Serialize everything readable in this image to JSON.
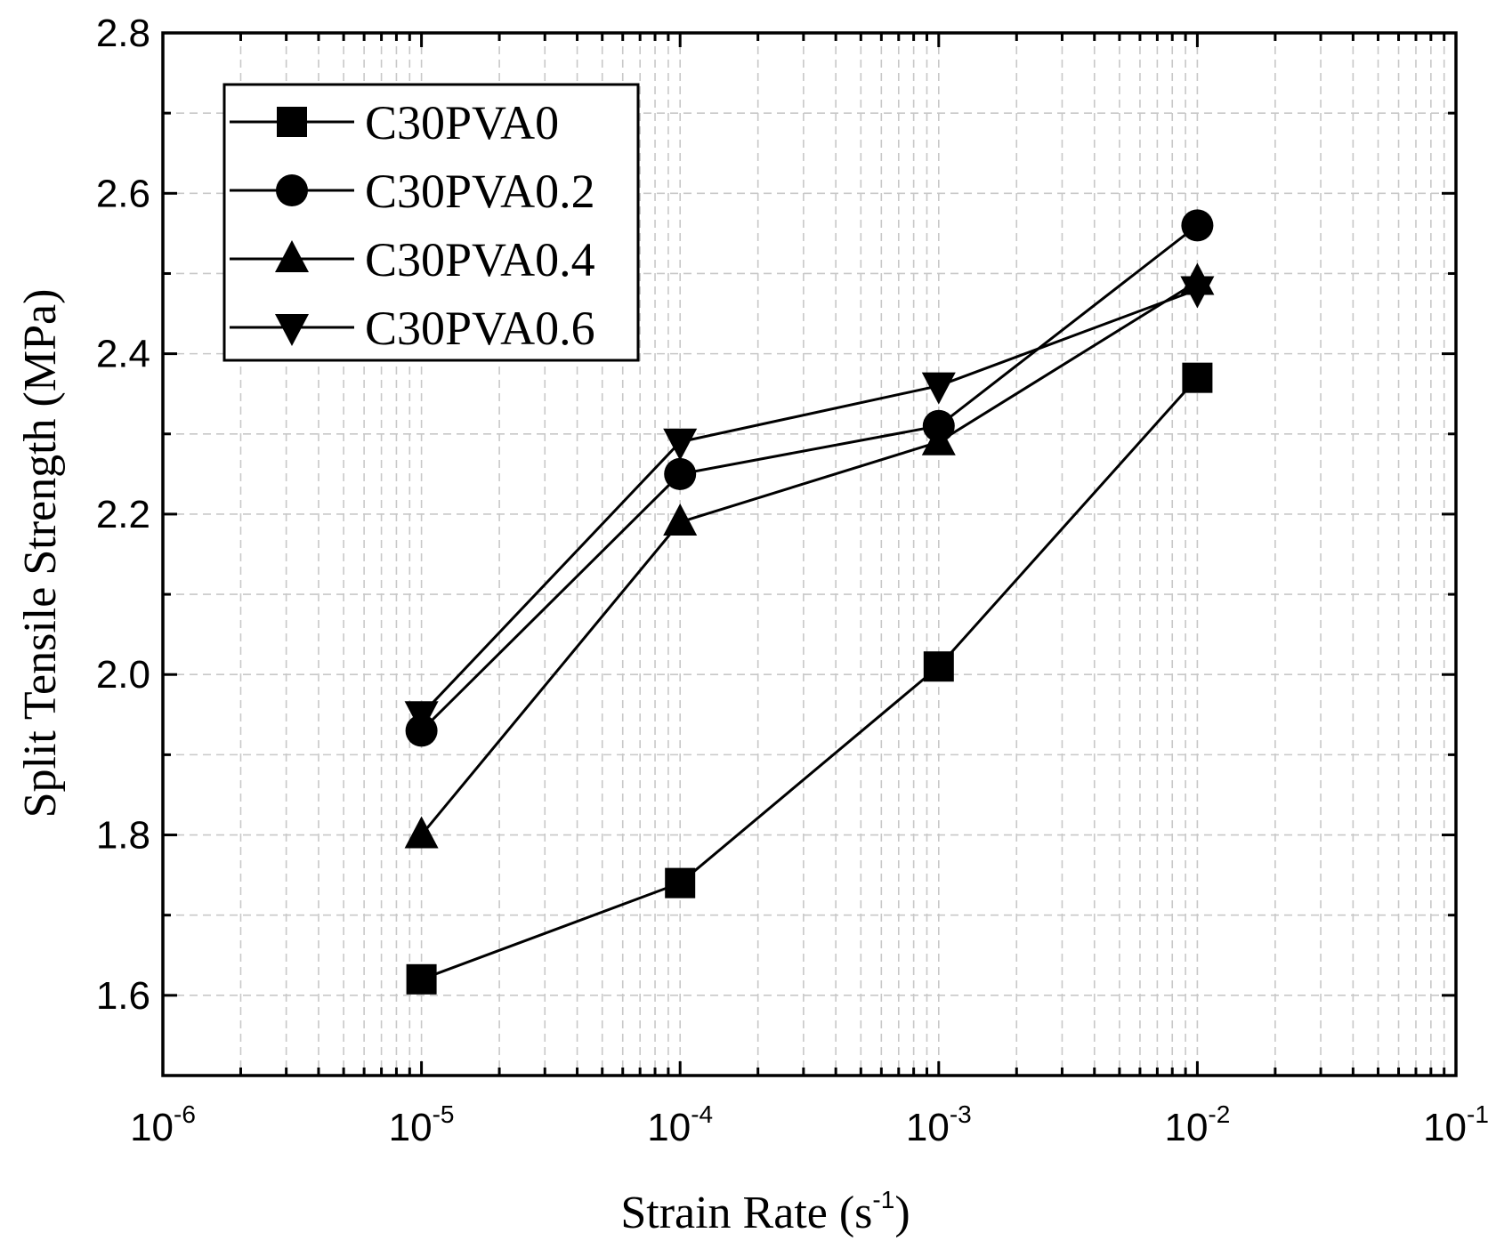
{
  "chart_data": {
    "type": "line",
    "title": "",
    "xlabel": "Strain Rate (s",
    "xlabel_exponent": "-1",
    "xlabel_suffix": ")",
    "ylabel": "Split Tensile Strength (MPa)",
    "xscale": "log",
    "xlim": [
      1e-06,
      0.1
    ],
    "ylim": [
      1.5,
      2.8
    ],
    "grid": true,
    "legend_position": "top-left",
    "x": [
      1e-05,
      0.0001,
      0.001,
      0.01
    ],
    "x_ticks": [
      {
        "value": 1e-06,
        "base": "10",
        "exp": "-6"
      },
      {
        "value": 1e-05,
        "base": "10",
        "exp": "-5"
      },
      {
        "value": 0.0001,
        "base": "10",
        "exp": "-4"
      },
      {
        "value": 0.001,
        "base": "10",
        "exp": "-3"
      },
      {
        "value": 0.01,
        "base": "10",
        "exp": "-2"
      },
      {
        "value": 0.1,
        "base": "10",
        "exp": "-1"
      }
    ],
    "y_ticks": [
      {
        "value": 1.6,
        "label": "1.6"
      },
      {
        "value": 1.8,
        "label": "1.8"
      },
      {
        "value": 2.0,
        "label": "2.0"
      },
      {
        "value": 2.2,
        "label": "2.2"
      },
      {
        "value": 2.4,
        "label": "2.4"
      },
      {
        "value": 2.6,
        "label": "2.6"
      },
      {
        "value": 2.8,
        "label": "2.8"
      }
    ],
    "series": [
      {
        "name": "C30PVA0",
        "marker": "square",
        "values": [
          1.62,
          1.74,
          2.01,
          2.37
        ]
      },
      {
        "name": "C30PVA0.2",
        "marker": "circle",
        "values": [
          1.93,
          2.25,
          2.31,
          2.56
        ]
      },
      {
        "name": "C30PVA0.4",
        "marker": "triangle-up",
        "values": [
          1.8,
          2.19,
          2.29,
          2.49
        ]
      },
      {
        "name": "C30PVA0.6",
        "marker": "triangle-down",
        "values": [
          1.95,
          2.29,
          2.36,
          2.48
        ]
      }
    ],
    "colors": {
      "line": "#000000",
      "grid": "#c8c8c8",
      "background": "#ffffff"
    }
  }
}
